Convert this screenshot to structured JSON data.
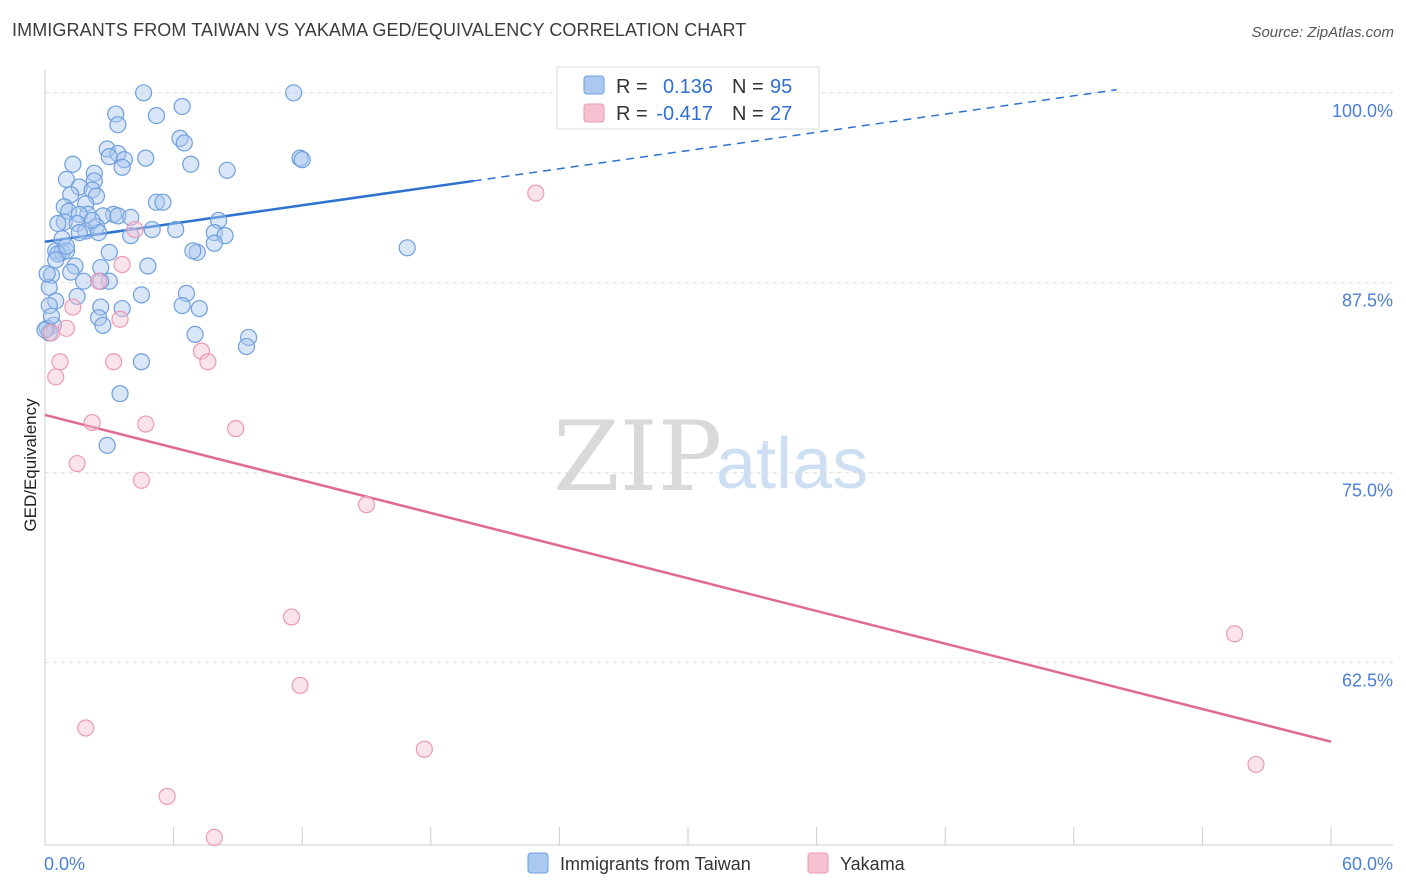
{
  "title": "IMMIGRANTS FROM TAIWAN VS YAKAMA GED/EQUIVALENCY CORRELATION CHART",
  "source": "Source: ZipAtlas.com",
  "watermark": {
    "zip": "ZIP",
    "atlas": "atlas"
  },
  "colors": {
    "blue_fill": "#aac8f0",
    "blue_stroke": "#6f9fe0",
    "blue_line": "#2e73d0",
    "pink_fill": "#f6c2d2",
    "pink_stroke": "#ec9ab4",
    "pink_line": "#e06a92",
    "grid": "#dddddd",
    "tick_text": "#4a7fd6"
  },
  "legend": {
    "rows": [
      {
        "r_label": "R =",
        "r_value": "0.136",
        "n_label": "N =",
        "n_value": "95",
        "swatch": "blue"
      },
      {
        "r_label": "R =",
        "r_value": "-0.417",
        "n_label": "N =",
        "n_value": "27",
        "swatch": "pink"
      }
    ]
  },
  "bottom_legend": [
    {
      "label": "Immigrants from Taiwan",
      "swatch": "blue"
    },
    {
      "label": "Yakama",
      "swatch": "pink"
    }
  ],
  "chart_data": {
    "type": "scatter",
    "title": "IMMIGRANTS FROM TAIWAN VS YAKAMA GED/EQUIVALENCY CORRELATION CHART",
    "xlabel": "",
    "ylabel": "GED/Equivalency",
    "xlim": [
      0,
      60
    ],
    "ylim": [
      50.5,
      101.5
    ],
    "x_tick_labels": [
      "0.0%",
      "60.0%"
    ],
    "y_ticks": [
      62.5,
      75.0,
      87.5,
      100.0
    ],
    "y_tick_labels": [
      "62.5%",
      "75.0%",
      "87.5%",
      "100.0%"
    ],
    "series": [
      {
        "name": "Immigrants from Taiwan",
        "color": "blue",
        "r": 0.136,
        "n": 95,
        "trend": {
          "x0": 0.0,
          "y0": 90.2,
          "x1": 20.0,
          "y1": 94.2,
          "dash_to_x": 50.0,
          "dash_to_y": 100.2
        },
        "points": [
          [
            4.6,
            100.0
          ],
          [
            11.6,
            100.0
          ],
          [
            6.4,
            99.1
          ],
          [
            3.3,
            98.6
          ],
          [
            5.2,
            98.5
          ],
          [
            3.4,
            97.9
          ],
          [
            6.3,
            97.0
          ],
          [
            6.5,
            96.7
          ],
          [
            2.9,
            96.3
          ],
          [
            3.4,
            96.0
          ],
          [
            3.0,
            95.8
          ],
          [
            4.7,
            95.7
          ],
          [
            3.7,
            95.6
          ],
          [
            11.9,
            95.7
          ],
          [
            12.0,
            95.6
          ],
          [
            6.8,
            95.3
          ],
          [
            1.3,
            95.3
          ],
          [
            3.6,
            95.1
          ],
          [
            8.5,
            94.9
          ],
          [
            2.3,
            94.7
          ],
          [
            1.0,
            94.3
          ],
          [
            2.3,
            94.2
          ],
          [
            1.6,
            93.8
          ],
          [
            2.2,
            93.6
          ],
          [
            1.2,
            93.3
          ],
          [
            2.4,
            93.2
          ],
          [
            5.2,
            92.8
          ],
          [
            5.5,
            92.8
          ],
          [
            1.9,
            92.7
          ],
          [
            0.9,
            92.5
          ],
          [
            1.1,
            92.2
          ],
          [
            2.0,
            92.0
          ],
          [
            3.2,
            92.0
          ],
          [
            1.6,
            92.0
          ],
          [
            2.7,
            91.9
          ],
          [
            3.4,
            91.9
          ],
          [
            4.0,
            91.8
          ],
          [
            0.9,
            91.5
          ],
          [
            8.1,
            91.6
          ],
          [
            1.5,
            91.4
          ],
          [
            2.4,
            91.2
          ],
          [
            0.6,
            91.4
          ],
          [
            6.1,
            91.0
          ],
          [
            1.9,
            90.9
          ],
          [
            7.9,
            90.8
          ],
          [
            2.5,
            90.8
          ],
          [
            1.6,
            90.8
          ],
          [
            4.0,
            90.6
          ],
          [
            8.4,
            90.6
          ],
          [
            0.8,
            90.4
          ],
          [
            7.9,
            90.1
          ],
          [
            16.9,
            89.8
          ],
          [
            0.5,
            89.6
          ],
          [
            0.8,
            89.5
          ],
          [
            1.0,
            89.6
          ],
          [
            0.6,
            89.4
          ],
          [
            3.0,
            89.5
          ],
          [
            7.1,
            89.5
          ],
          [
            6.9,
            89.6
          ],
          [
            0.5,
            89.0
          ],
          [
            1.4,
            88.6
          ],
          [
            4.8,
            88.6
          ],
          [
            2.6,
            88.5
          ],
          [
            1.2,
            88.2
          ],
          [
            0.3,
            88.0
          ],
          [
            3.0,
            87.6
          ],
          [
            2.6,
            87.6
          ],
          [
            0.2,
            87.2
          ],
          [
            6.6,
            86.8
          ],
          [
            4.5,
            86.7
          ],
          [
            1.5,
            86.6
          ],
          [
            0.5,
            86.3
          ],
          [
            0.2,
            86.0
          ],
          [
            6.4,
            86.0
          ],
          [
            7.2,
            85.8
          ],
          [
            3.6,
            85.8
          ],
          [
            2.6,
            85.9
          ],
          [
            2.5,
            85.2
          ],
          [
            0.4,
            84.7
          ],
          [
            2.7,
            84.7
          ],
          [
            0.1,
            84.5
          ],
          [
            0.2,
            84.2
          ],
          [
            7.0,
            84.1
          ],
          [
            9.5,
            83.9
          ],
          [
            9.4,
            83.3
          ],
          [
            4.5,
            82.3
          ],
          [
            0.0,
            84.4
          ],
          [
            3.5,
            80.2
          ],
          [
            2.9,
            76.8
          ],
          [
            0.3,
            85.3
          ],
          [
            1.8,
            87.6
          ],
          [
            5.0,
            91.0
          ],
          [
            2.2,
            91.6
          ],
          [
            1.0,
            89.9
          ],
          [
            0.1,
            88.1
          ]
        ]
      },
      {
        "name": "Yakama",
        "color": "pink",
        "r": -0.417,
        "n": 27,
        "trend": {
          "x0": 0.0,
          "y0": 78.8,
          "x1": 60.0,
          "y1": 57.3
        },
        "points": [
          [
            22.9,
            93.4
          ],
          [
            4.2,
            91.0
          ],
          [
            3.6,
            88.7
          ],
          [
            2.5,
            87.6
          ],
          [
            1.3,
            85.9
          ],
          [
            3.5,
            85.1
          ],
          [
            1.0,
            84.5
          ],
          [
            7.3,
            83.0
          ],
          [
            0.7,
            82.3
          ],
          [
            3.2,
            82.3
          ],
          [
            7.6,
            82.3
          ],
          [
            0.5,
            81.3
          ],
          [
            2.2,
            78.3
          ],
          [
            4.7,
            78.2
          ],
          [
            8.9,
            77.9
          ],
          [
            1.5,
            75.6
          ],
          [
            4.5,
            74.5
          ],
          [
            15.0,
            72.9
          ],
          [
            11.5,
            65.5
          ],
          [
            55.5,
            64.4
          ],
          [
            11.9,
            61.0
          ],
          [
            1.9,
            58.2
          ],
          [
            17.7,
            56.8
          ],
          [
            56.5,
            55.8
          ],
          [
            5.7,
            53.7
          ],
          [
            7.9,
            51.0
          ],
          [
            0.3,
            84.2
          ]
        ]
      }
    ]
  }
}
